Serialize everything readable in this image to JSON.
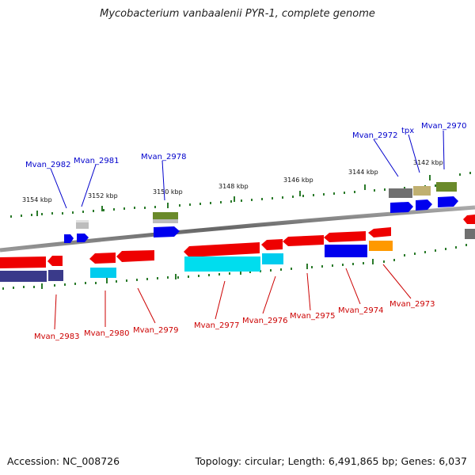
{
  "title": "Mycobacterium vanbaalenii PYR-1, complete genome",
  "footer": {
    "accession": "Accession: NC_008726",
    "summary": "Topology: circular; Length: 6,491,865 bp; Genes: 6,037"
  },
  "scale_labels": [
    "3154 kbp",
    "3152 kbp",
    "3150 kbp",
    "3148 kbp",
    "3146 kbp",
    "3144 kbp",
    "3142 kbp"
  ],
  "forward_gene_labels": [
    "Mvan_2982",
    "Mvan_2981",
    "Mvan_2978",
    "Mvan_2972",
    "tpx",
    "Mvan_2970"
  ],
  "reverse_gene_labels": [
    "Mvan_2983",
    "Mvan_2980",
    "Mvan_2979",
    "Mvan_2977",
    "Mvan_2976",
    "Mvan_2975",
    "Mvan_2974",
    "Mvan_2973"
  ],
  "colors": {
    "forward_label": "#0000cc",
    "reverse_label": "#cc0000",
    "ticks": "#2a7a2a",
    "gene_red": "#ee0000",
    "gene_blue": "#0000ee",
    "gene_cyan": "#00ccee",
    "gene_navy": "#3a3a8a",
    "gene_orange": "#ff9900",
    "gene_olive": "#6a8a2a",
    "gene_khaki": "#c0b070",
    "gene_gray": "#707070",
    "backbone": "#888888"
  }
}
